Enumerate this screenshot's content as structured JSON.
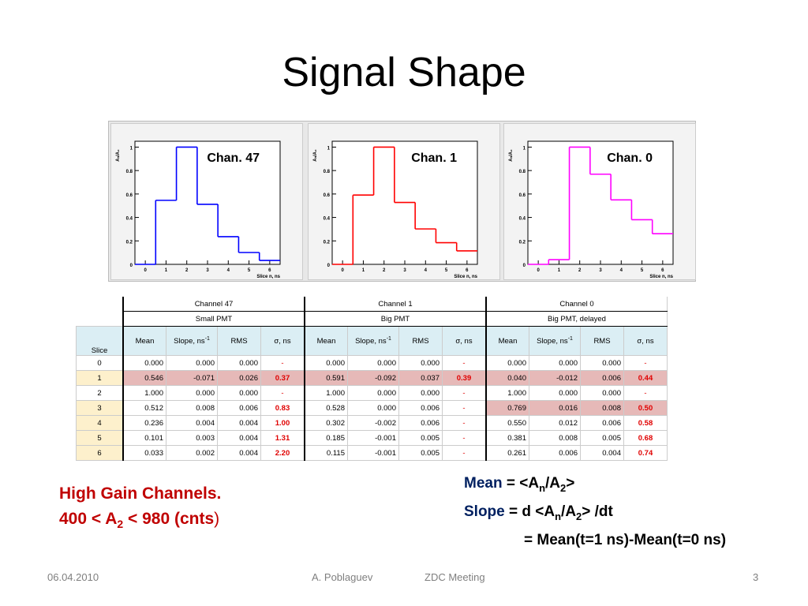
{
  "slide": {
    "title": "Signal Shape",
    "footer": {
      "date": "06.04.2010",
      "author": "A. Poblaguev",
      "event": "ZDC Meeting",
      "page": "3"
    }
  },
  "plots": {
    "y_axis_label": "Aₙ/A₂",
    "x_axis_label": "Slice n, ns",
    "x_ticks": [
      "0",
      "1",
      "2",
      "3",
      "4",
      "5",
      "6"
    ],
    "y_ticks": [
      "0",
      "0.2",
      "0.4",
      "0.6",
      "0.8",
      "1"
    ]
  },
  "chart_data": [
    {
      "type": "line",
      "title": "Chan. 47",
      "color": "#0000ff",
      "xlabel": "Slice n, ns",
      "ylabel": "Aₙ/A₂",
      "x": [
        0,
        1,
        2,
        3,
        4,
        5,
        6
      ],
      "y": [
        0.0,
        0.546,
        1.0,
        0.512,
        0.236,
        0.101,
        0.033
      ],
      "xlim": [
        -0.5,
        6.5
      ],
      "ylim": [
        0,
        1.05
      ]
    },
    {
      "type": "line",
      "title": "Chan.  1",
      "color": "#ff0000",
      "xlabel": "Slice n, ns",
      "ylabel": "Aₙ/A₂",
      "x": [
        0,
        1,
        2,
        3,
        4,
        5,
        6
      ],
      "y": [
        0.0,
        0.591,
        1.0,
        0.528,
        0.302,
        0.185,
        0.115
      ],
      "xlim": [
        -0.5,
        6.5
      ],
      "ylim": [
        0,
        1.05
      ]
    },
    {
      "type": "line",
      "title": "Chan.  0",
      "color": "#ff00ff",
      "xlabel": "Slice n, ns",
      "ylabel": "Aₙ/A₂",
      "x": [
        0,
        1,
        2,
        3,
        4,
        5,
        6
      ],
      "y": [
        0.0,
        0.04,
        1.0,
        0.769,
        0.55,
        0.381,
        0.261
      ],
      "xlim": [
        -0.5,
        6.5
      ],
      "ylim": [
        0,
        1.05
      ]
    }
  ],
  "table": {
    "groups": [
      {
        "channel": "Channel  47",
        "pmt": "Small PMT"
      },
      {
        "channel": "Channel  1",
        "pmt": "Big PMT"
      },
      {
        "channel": "Channel 0",
        "pmt": "Big PMT, delayed"
      }
    ],
    "slice_header": "Slice",
    "col_headers": [
      "Mean",
      "Slope, ns",
      "RMS",
      "σ,  ns"
    ],
    "slope_exp": "-1",
    "rows": [
      {
        "slice": "0",
        "c": [
          [
            "0.000",
            "0.000",
            "0.000",
            "-"
          ],
          [
            "0.000",
            "0.000",
            "0.000",
            "-"
          ],
          [
            "0.000",
            "0.000",
            "0.000",
            "-"
          ]
        ]
      },
      {
        "slice": "1",
        "c": [
          [
            "0.546",
            "-0.071",
            "0.026",
            "0.37"
          ],
          [
            "0.591",
            "-0.092",
            "0.037",
            "0.39"
          ],
          [
            "0.040",
            "-0.012",
            "0.006",
            "0.44"
          ]
        ]
      },
      {
        "slice": "2",
        "c": [
          [
            "1.000",
            "0.000",
            "0.000",
            "-"
          ],
          [
            "1.000",
            "0.000",
            "0.000",
            "-"
          ],
          [
            "1.000",
            "0.000",
            "0.000",
            "-"
          ]
        ]
      },
      {
        "slice": "3",
        "c": [
          [
            "0.512",
            "0.008",
            "0.006",
            "0.83"
          ],
          [
            "0.528",
            "0.000",
            "0.006",
            "-"
          ],
          [
            "0.769",
            "0.016",
            "0.008",
            "0.50"
          ]
        ]
      },
      {
        "slice": "4",
        "c": [
          [
            "0.236",
            "0.004",
            "0.004",
            "1.00"
          ],
          [
            "0.302",
            "-0.002",
            "0.006",
            "-"
          ],
          [
            "0.550",
            "0.012",
            "0.006",
            "0.58"
          ]
        ]
      },
      {
        "slice": "5",
        "c": [
          [
            "0.101",
            "0.003",
            "0.004",
            "1.31"
          ],
          [
            "0.185",
            "-0.001",
            "0.005",
            "-"
          ],
          [
            "0.381",
            "0.008",
            "0.005",
            "0.68"
          ]
        ]
      },
      {
        "slice": "6",
        "c": [
          [
            "0.033",
            "0.002",
            "0.004",
            "2.20"
          ],
          [
            "0.115",
            "-0.001",
            "0.005",
            "-"
          ],
          [
            "0.261",
            "0.006",
            "0.004",
            "0.74"
          ]
        ]
      }
    ]
  },
  "notes": {
    "left_line1": "High Gain Channels.",
    "left_line2_a": "400 < A",
    "left_line2_sub": "2",
    "left_line2_b": " < 980  (cnts",
    "left_line2_c": ")",
    "mean_label": "Mean",
    "mean_def_a": " = <A",
    "mean_def_sub_n": "n",
    "mean_def_b": "/A",
    "mean_def_sub_2": "2",
    "mean_def_c": ">",
    "slope_label": "Slope",
    "slope_def_a": "  = d <A",
    "slope_def_sub_n": "n",
    "slope_def_b": "/A",
    "slope_def_sub_2": "2",
    "slope_def_c": "> /dt",
    "slope_eq": "= Mean(t=1 ns)-Mean(t=0 ns)"
  }
}
